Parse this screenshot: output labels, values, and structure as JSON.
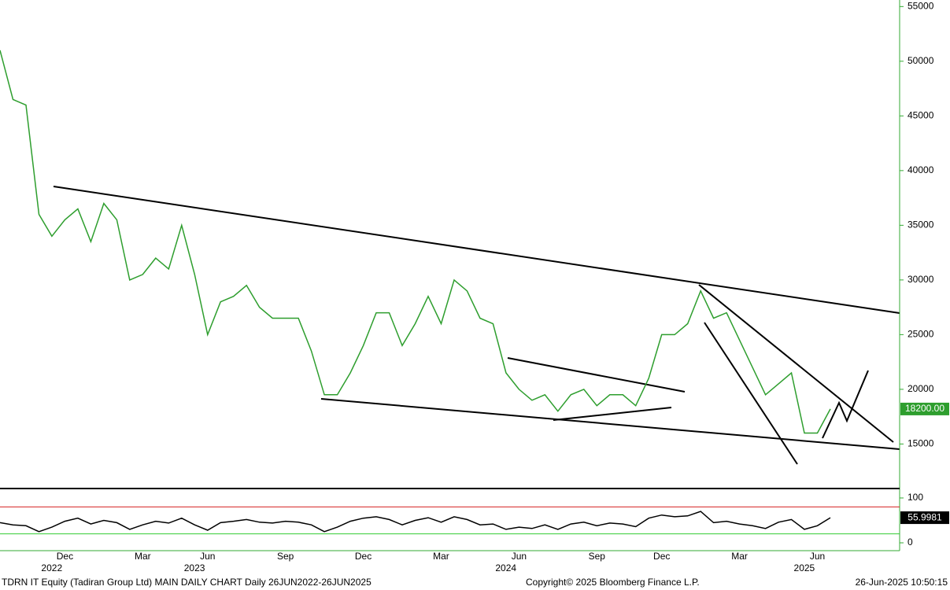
{
  "chart_data": [
    {
      "type": "line",
      "name": "TDRN IT Equity",
      "categories": [
        null,
        null,
        null,
        null,
        null,
        "Dec",
        null,
        null,
        null,
        null,
        null,
        "Mar",
        null,
        null,
        null,
        null,
        "Jun",
        null,
        null,
        null,
        null,
        null,
        "Sep",
        null,
        null,
        null,
        null,
        null,
        "Dec",
        null,
        null,
        null,
        null,
        null,
        "Mar",
        null,
        null,
        null,
        null,
        null,
        "Jun",
        null,
        null,
        null,
        null,
        null,
        "Sep",
        null,
        null,
        null,
        null,
        "Dec",
        null,
        null,
        null,
        null,
        null,
        "Mar",
        null,
        null,
        null,
        null,
        null,
        "Jun",
        null
      ],
      "year_labels": [
        null,
        null,
        null,
        null,
        null,
        "2022",
        null,
        null,
        null,
        null,
        null,
        null,
        null,
        null,
        null,
        null,
        "2023",
        null,
        null,
        null,
        null,
        null,
        null,
        null,
        null,
        null,
        null,
        null,
        null,
        null,
        null,
        null,
        null,
        null,
        null,
        null,
        null,
        null,
        null,
        null,
        "2024",
        null,
        null,
        null,
        null,
        null,
        null,
        null,
        null,
        null,
        null,
        null,
        null,
        null,
        null,
        null,
        null,
        null,
        null,
        null,
        null,
        null,
        null,
        "2025",
        null
      ],
      "values": [
        51000,
        46500,
        46000,
        36000,
        34000,
        35500,
        36500,
        33500,
        37000,
        35500,
        30000,
        30500,
        32000,
        31000,
        35000,
        30500,
        25000,
        28000,
        28500,
        29500,
        27500,
        26500,
        26500,
        26500,
        23500,
        19500,
        19500,
        21500,
        24000,
        27000,
        27000,
        24000,
        26000,
        28500,
        26000,
        30000,
        29000,
        26500,
        26000,
        21500,
        20000,
        19000,
        19500,
        18000,
        19500,
        20000,
        18500,
        19500,
        19500,
        18500,
        21000,
        25000,
        25000,
        26000,
        29000,
        26500,
        27000,
        24500,
        22000,
        19500,
        20500,
        21500,
        16000,
        16000,
        18200
      ],
      "color": "#2e9e2e",
      "last_label": {
        "value": 18200,
        "label": "18200.00"
      },
      "ylim": [
        11000,
        55600
      ],
      "yticks": [
        15000,
        20000,
        25000,
        30000,
        35000,
        40000,
        45000,
        50000,
        55000
      ]
    },
    {
      "type": "line",
      "name": "RSI",
      "values": [
        45,
        40,
        38,
        25,
        35,
        48,
        55,
        42,
        50,
        45,
        30,
        40,
        48,
        44,
        55,
        40,
        28,
        45,
        48,
        52,
        46,
        44,
        48,
        46,
        40,
        25,
        35,
        48,
        55,
        58,
        52,
        40,
        50,
        56,
        46,
        58,
        52,
        40,
        42,
        30,
        35,
        32,
        40,
        30,
        42,
        46,
        38,
        44,
        42,
        36,
        55,
        62,
        58,
        60,
        70,
        45,
        48,
        42,
        38,
        32,
        46,
        52,
        30,
        38,
        55.9981
      ],
      "color": "#000000",
      "last_label": {
        "value": 55.9981,
        "label": "55.9981"
      },
      "ref_lines": [
        {
          "value": 80,
          "color": "#d42020"
        },
        {
          "value": 20,
          "color": "#33cc33"
        }
      ],
      "ylim": [
        -17.5,
        114
      ],
      "yticks": [
        0,
        100
      ]
    }
  ],
  "footer": {
    "left": "TDRN IT Equity (Tadiran Group Ltd) MAIN DAILY CHART  Daily 26JUN2022-26JUN2025",
    "center": "Copyright© 2025 Bloomberg Finance L.P.",
    "right": "26-Jun-2025 10:50:15"
  }
}
